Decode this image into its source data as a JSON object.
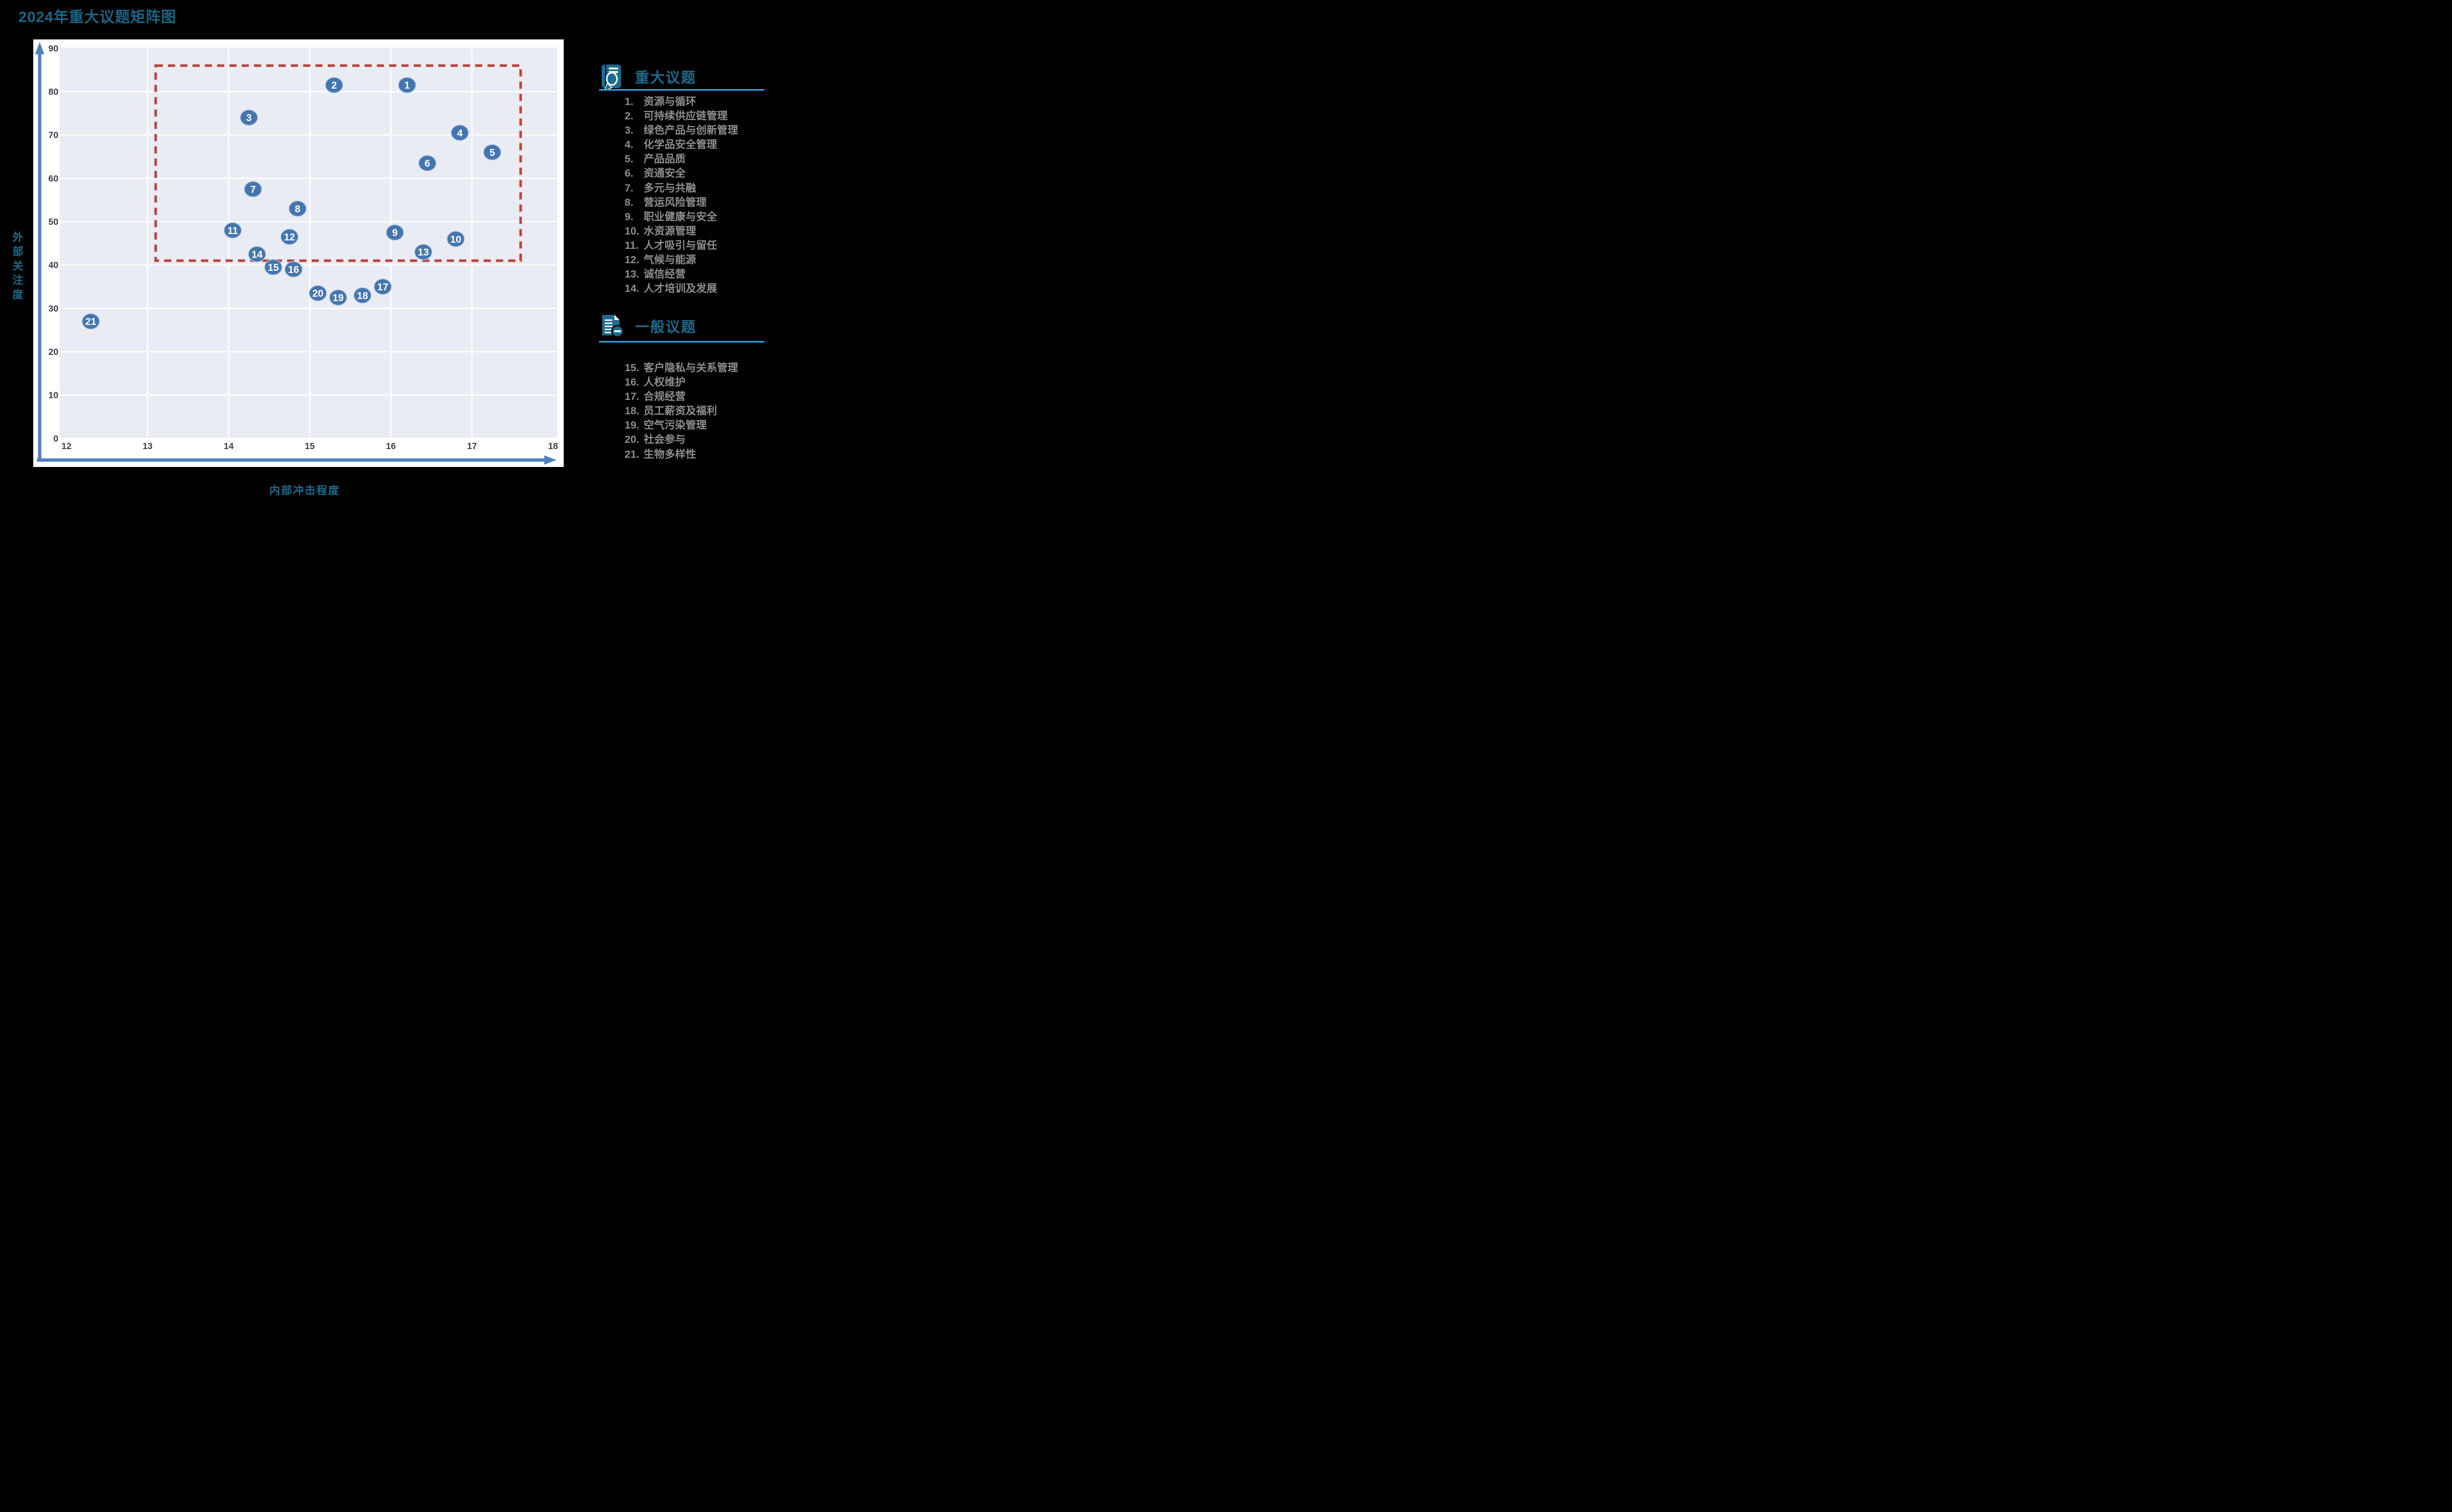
{
  "title": "2024年重大议题矩阵图",
  "chart_data": {
    "type": "scatter",
    "title": "2024年重大议题矩阵图",
    "xlabel": "内部冲击程度",
    "ylabel": "外部关注度",
    "xlim": [
      12,
      18
    ],
    "ylim": [
      0,
      90
    ],
    "x_ticks": [
      12,
      13,
      14,
      15,
      16,
      17,
      18
    ],
    "y_ticks": [
      0,
      10,
      20,
      30,
      40,
      50,
      60,
      70,
      80,
      90
    ],
    "grid": "on",
    "plot_bg": "#E9ECF3",
    "grid_color": "#FFFFFF",
    "marker_color": "#4575AE",
    "marker_halo": "#BCCFE8",
    "axis_color": "#4F81BD",
    "tick_color": "#3C3C46",
    "highlight_box": {
      "x_min": 13.1,
      "x_max": 17.6,
      "y_min": 41,
      "y_max": 86,
      "color": "#B8433F",
      "style": "dashed"
    },
    "points": [
      {
        "n": 1,
        "x": 16.2,
        "y": 81.5,
        "label": "资源与循环"
      },
      {
        "n": 2,
        "x": 15.3,
        "y": 81.5,
        "label": "可持续供应链管理"
      },
      {
        "n": 3,
        "x": 14.25,
        "y": 74,
        "label": "绿色产品与创新管理"
      },
      {
        "n": 4,
        "x": 16.85,
        "y": 70.5,
        "label": "化学品安全管理"
      },
      {
        "n": 5,
        "x": 17.25,
        "y": 66,
        "label": "产品品质"
      },
      {
        "n": 6,
        "x": 16.45,
        "y": 63.5,
        "label": "资通安全"
      },
      {
        "n": 7,
        "x": 14.3,
        "y": 57.5,
        "label": "多元与共融"
      },
      {
        "n": 8,
        "x": 14.85,
        "y": 53,
        "label": "营运风险管理"
      },
      {
        "n": 9,
        "x": 16.05,
        "y": 47.5,
        "label": "职业健康与安全"
      },
      {
        "n": 10,
        "x": 16.8,
        "y": 46,
        "label": "水资源管理"
      },
      {
        "n": 11,
        "x": 14.05,
        "y": 48,
        "label": "人才吸引与留任"
      },
      {
        "n": 12,
        "x": 14.75,
        "y": 46.5,
        "label": "气候与能源"
      },
      {
        "n": 13,
        "x": 16.4,
        "y": 43,
        "label": "诚信经营"
      },
      {
        "n": 14,
        "x": 14.35,
        "y": 42.5,
        "label": "人才培训及发展"
      },
      {
        "n": 15,
        "x": 14.55,
        "y": 39.5,
        "label": "客户隐私与关系管理"
      },
      {
        "n": 16,
        "x": 14.8,
        "y": 39,
        "label": "人权维护"
      },
      {
        "n": 17,
        "x": 15.9,
        "y": 35,
        "label": "合规经营"
      },
      {
        "n": 18,
        "x": 15.65,
        "y": 33,
        "label": "员工薪资及福利"
      },
      {
        "n": 19,
        "x": 15.35,
        "y": 32.5,
        "label": "空气污染管理"
      },
      {
        "n": 20,
        "x": 15.1,
        "y": 33.5,
        "label": "社会参与"
      },
      {
        "n": 21,
        "x": 12.3,
        "y": 27,
        "label": "生物多样性"
      }
    ]
  },
  "legend": {
    "accent_line_color": "#2AA7E0",
    "title_color": "#1D6B8E",
    "item_color": "#8E8E8E",
    "major": {
      "title": "重大议题",
      "items": [
        {
          "num": "1.",
          "name": "资源与循环"
        },
        {
          "num": "2.",
          "name": "可持续供应链管理"
        },
        {
          "num": "3.",
          "name": "绿色产品与创新管理"
        },
        {
          "num": "4.",
          "name": "化学品安全管理"
        },
        {
          "num": "5.",
          "name": "产品品质"
        },
        {
          "num": "6.",
          "name": "资通安全"
        },
        {
          "num": "7.",
          "name": "多元与共融"
        },
        {
          "num": "8.",
          "name": "营运风险管理"
        },
        {
          "num": "9.",
          "name": "职业健康与安全"
        },
        {
          "num": "10.",
          "name": "水资源管理"
        },
        {
          "num": "11.",
          "name": "人才吸引与留任"
        },
        {
          "num": "12.",
          "name": "气候与能源"
        },
        {
          "num": "13.",
          "name": "诚信经营"
        },
        {
          "num": "14.",
          "name": "人才培训及发展"
        }
      ]
    },
    "general": {
      "title": "一般议题",
      "items": [
        {
          "num": "15.",
          "name": "客户隐私与关系管理"
        },
        {
          "num": "16.",
          "name": "人权维护"
        },
        {
          "num": "17.",
          "name": "合规经营"
        },
        {
          "num": "18.",
          "name": "员工薪资及福利"
        },
        {
          "num": "19.",
          "name": "空气污染管理"
        },
        {
          "num": "20.",
          "name": "社会参与"
        },
        {
          "num": "21.",
          "name": "生物多样性"
        }
      ]
    }
  }
}
